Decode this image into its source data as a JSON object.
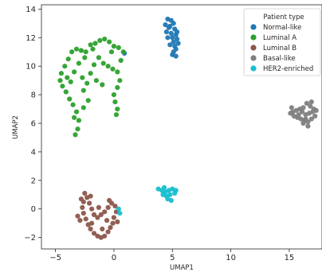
{
  "chart_data": {
    "type": "scatter",
    "title": "",
    "xlabel": "UMAP1",
    "ylabel": "UMAP2",
    "xlim": [
      -6.2,
      17.8
    ],
    "ylim": [
      -2.8,
      14.3
    ],
    "xticks": [
      -5,
      0,
      5,
      10,
      15
    ],
    "yticks": [
      -2,
      0,
      2,
      4,
      6,
      8,
      10,
      12,
      14
    ],
    "grid": false,
    "legend": {
      "title": "Patient type",
      "placement": "top-right"
    },
    "series": [
      {
        "name": "Normal-like",
        "color": "#1f77b4",
        "points": [
          [
            4.6,
            13.3
          ],
          [
            4.9,
            13.2
          ],
          [
            5.1,
            13.0
          ],
          [
            4.4,
            12.9
          ],
          [
            4.8,
            12.8
          ],
          [
            5.2,
            12.6
          ],
          [
            4.5,
            12.4
          ],
          [
            4.9,
            12.3
          ],
          [
            5.3,
            12.2
          ],
          [
            5.0,
            12.0
          ],
          [
            4.6,
            12.0
          ],
          [
            5.4,
            11.9
          ],
          [
            5.1,
            11.7
          ],
          [
            5.5,
            11.6
          ],
          [
            5.2,
            11.4
          ],
          [
            4.8,
            11.5
          ],
          [
            5.3,
            11.2
          ],
          [
            5.1,
            11.0
          ],
          [
            5.0,
            10.8
          ],
          [
            5.3,
            10.7
          ],
          [
            4.7,
            12.7
          ],
          [
            5.4,
            12.4
          ],
          [
            0.9,
            10.9
          ]
        ]
      },
      {
        "name": "Luminal A",
        "color": "#2ca02c",
        "points": [
          [
            -3.6,
            11.0
          ],
          [
            -3.2,
            11.2
          ],
          [
            -2.8,
            11.1
          ],
          [
            -2.4,
            11.0
          ],
          [
            -2.0,
            11.5
          ],
          [
            -1.6,
            11.6
          ],
          [
            -1.2,
            11.8
          ],
          [
            -0.8,
            11.9
          ],
          [
            -0.4,
            11.7
          ],
          [
            0.0,
            11.4
          ],
          [
            0.4,
            11.3
          ],
          [
            0.8,
            11.0
          ],
          [
            -3.9,
            10.5
          ],
          [
            -4.2,
            10.0
          ],
          [
            -4.5,
            9.5
          ],
          [
            -4.6,
            9.0
          ],
          [
            -4.4,
            8.6
          ],
          [
            -4.1,
            8.2
          ],
          [
            -3.8,
            7.7
          ],
          [
            -3.5,
            7.3
          ],
          [
            -3.2,
            6.8
          ],
          [
            -3.0,
            6.2
          ],
          [
            -3.1,
            5.6
          ],
          [
            -3.3,
            5.2
          ],
          [
            -2.7,
            9.2
          ],
          [
            -2.3,
            8.8
          ],
          [
            -2.0,
            9.5
          ],
          [
            -1.7,
            10.1
          ],
          [
            -1.3,
            10.6
          ],
          [
            -0.9,
            10.2
          ],
          [
            -0.5,
            10.0
          ],
          [
            -0.1,
            9.8
          ],
          [
            0.3,
            9.6
          ],
          [
            0.5,
            9.0
          ],
          [
            0.3,
            8.5
          ],
          [
            0.0,
            8.0
          ],
          [
            0.1,
            7.5
          ],
          [
            0.3,
            7.0
          ],
          [
            0.2,
            6.6
          ],
          [
            -1.5,
            9.0
          ],
          [
            -1.0,
            8.7
          ],
          [
            -2.6,
            8.3
          ],
          [
            -2.2,
            7.6
          ],
          [
            -2.6,
            7.1
          ],
          [
            -3.7,
            8.9
          ],
          [
            -3.0,
            10.2
          ],
          [
            -2.5,
            10.6
          ],
          [
            -0.2,
            11.0
          ],
          [
            0.6,
            10.4
          ],
          [
            -3.4,
            9.6
          ],
          [
            -4.0,
            9.2
          ],
          [
            -1.8,
            11.2
          ],
          [
            -3.4,
            6.4
          ]
        ]
      },
      {
        "name": "Luminal B",
        "color": "#8c564b",
        "points": [
          [
            -2.5,
            1.1
          ],
          [
            -2.3,
            0.8
          ],
          [
            -2.6,
            0.5
          ],
          [
            -2.7,
            0.1
          ],
          [
            -2.6,
            -0.3
          ],
          [
            -2.4,
            -0.7
          ],
          [
            -2.2,
            -1.1
          ],
          [
            -2.0,
            -1.4
          ],
          [
            -1.7,
            -1.7
          ],
          [
            -1.4,
            -1.9
          ],
          [
            -1.1,
            -2.0
          ],
          [
            -0.8,
            -1.9
          ],
          [
            -0.5,
            -1.6
          ],
          [
            -0.3,
            -1.3
          ],
          [
            -0.1,
            -1.0
          ],
          [
            0.0,
            -0.6
          ],
          [
            0.2,
            -0.2
          ],
          [
            0.1,
            0.2
          ],
          [
            -0.2,
            0.4
          ],
          [
            -0.5,
            0.1
          ],
          [
            -0.8,
            -0.2
          ],
          [
            -1.1,
            -0.4
          ],
          [
            -1.4,
            -0.6
          ],
          [
            -1.7,
            -0.4
          ],
          [
            -1.9,
            0.0
          ],
          [
            -2.1,
            0.4
          ],
          [
            -2.9,
            -0.8
          ],
          [
            -3.1,
            -0.5
          ],
          [
            -2.0,
            0.9
          ],
          [
            -1.3,
            0.1
          ],
          [
            -0.6,
            -0.8
          ],
          [
            -1.0,
            -1.4
          ],
          [
            -1.9,
            -1.0
          ],
          [
            -2.8,
            0.7
          ],
          [
            0.3,
            -0.9
          ],
          [
            -0.4,
            0.6
          ]
        ]
      },
      {
        "name": "Basal-like",
        "color": "#7f7f7f",
        "points": [
          [
            16.5,
            7.4
          ],
          [
            16.8,
            7.2
          ],
          [
            17.1,
            7.0
          ],
          [
            16.2,
            7.1
          ],
          [
            15.9,
            7.0
          ],
          [
            15.6,
            6.9
          ],
          [
            15.3,
            6.8
          ],
          [
            15.1,
            6.7
          ],
          [
            15.4,
            6.5
          ],
          [
            15.7,
            6.4
          ],
          [
            16.0,
            6.3
          ],
          [
            16.3,
            6.2
          ],
          [
            16.6,
            6.1
          ],
          [
            16.9,
            6.3
          ],
          [
            17.2,
            6.5
          ],
          [
            17.0,
            6.8
          ],
          [
            16.4,
            6.6
          ],
          [
            16.7,
            6.7
          ],
          [
            16.1,
            6.8
          ],
          [
            15.8,
            6.6
          ],
          [
            16.2,
            6.0
          ],
          [
            16.6,
            5.8
          ],
          [
            15.2,
            7.1
          ],
          [
            17.3,
            6.9
          ],
          [
            16.9,
            7.5
          ],
          [
            16.4,
            6.3
          ]
        ]
      },
      {
        "name": "HER2-enriched",
        "color": "#17becf",
        "points": [
          [
            3.8,
            1.4
          ],
          [
            4.1,
            1.3
          ],
          [
            4.4,
            1.2
          ],
          [
            4.7,
            1.3
          ],
          [
            5.0,
            1.4
          ],
          [
            5.3,
            1.3
          ],
          [
            4.2,
            1.0
          ],
          [
            4.5,
            0.9
          ],
          [
            4.8,
            1.0
          ],
          [
            4.6,
            0.7
          ],
          [
            4.9,
            0.6
          ],
          [
            4.3,
            1.5
          ],
          [
            5.2,
            1.1
          ],
          [
            0.4,
            0.0
          ],
          [
            0.5,
            -0.3
          ]
        ]
      }
    ]
  }
}
